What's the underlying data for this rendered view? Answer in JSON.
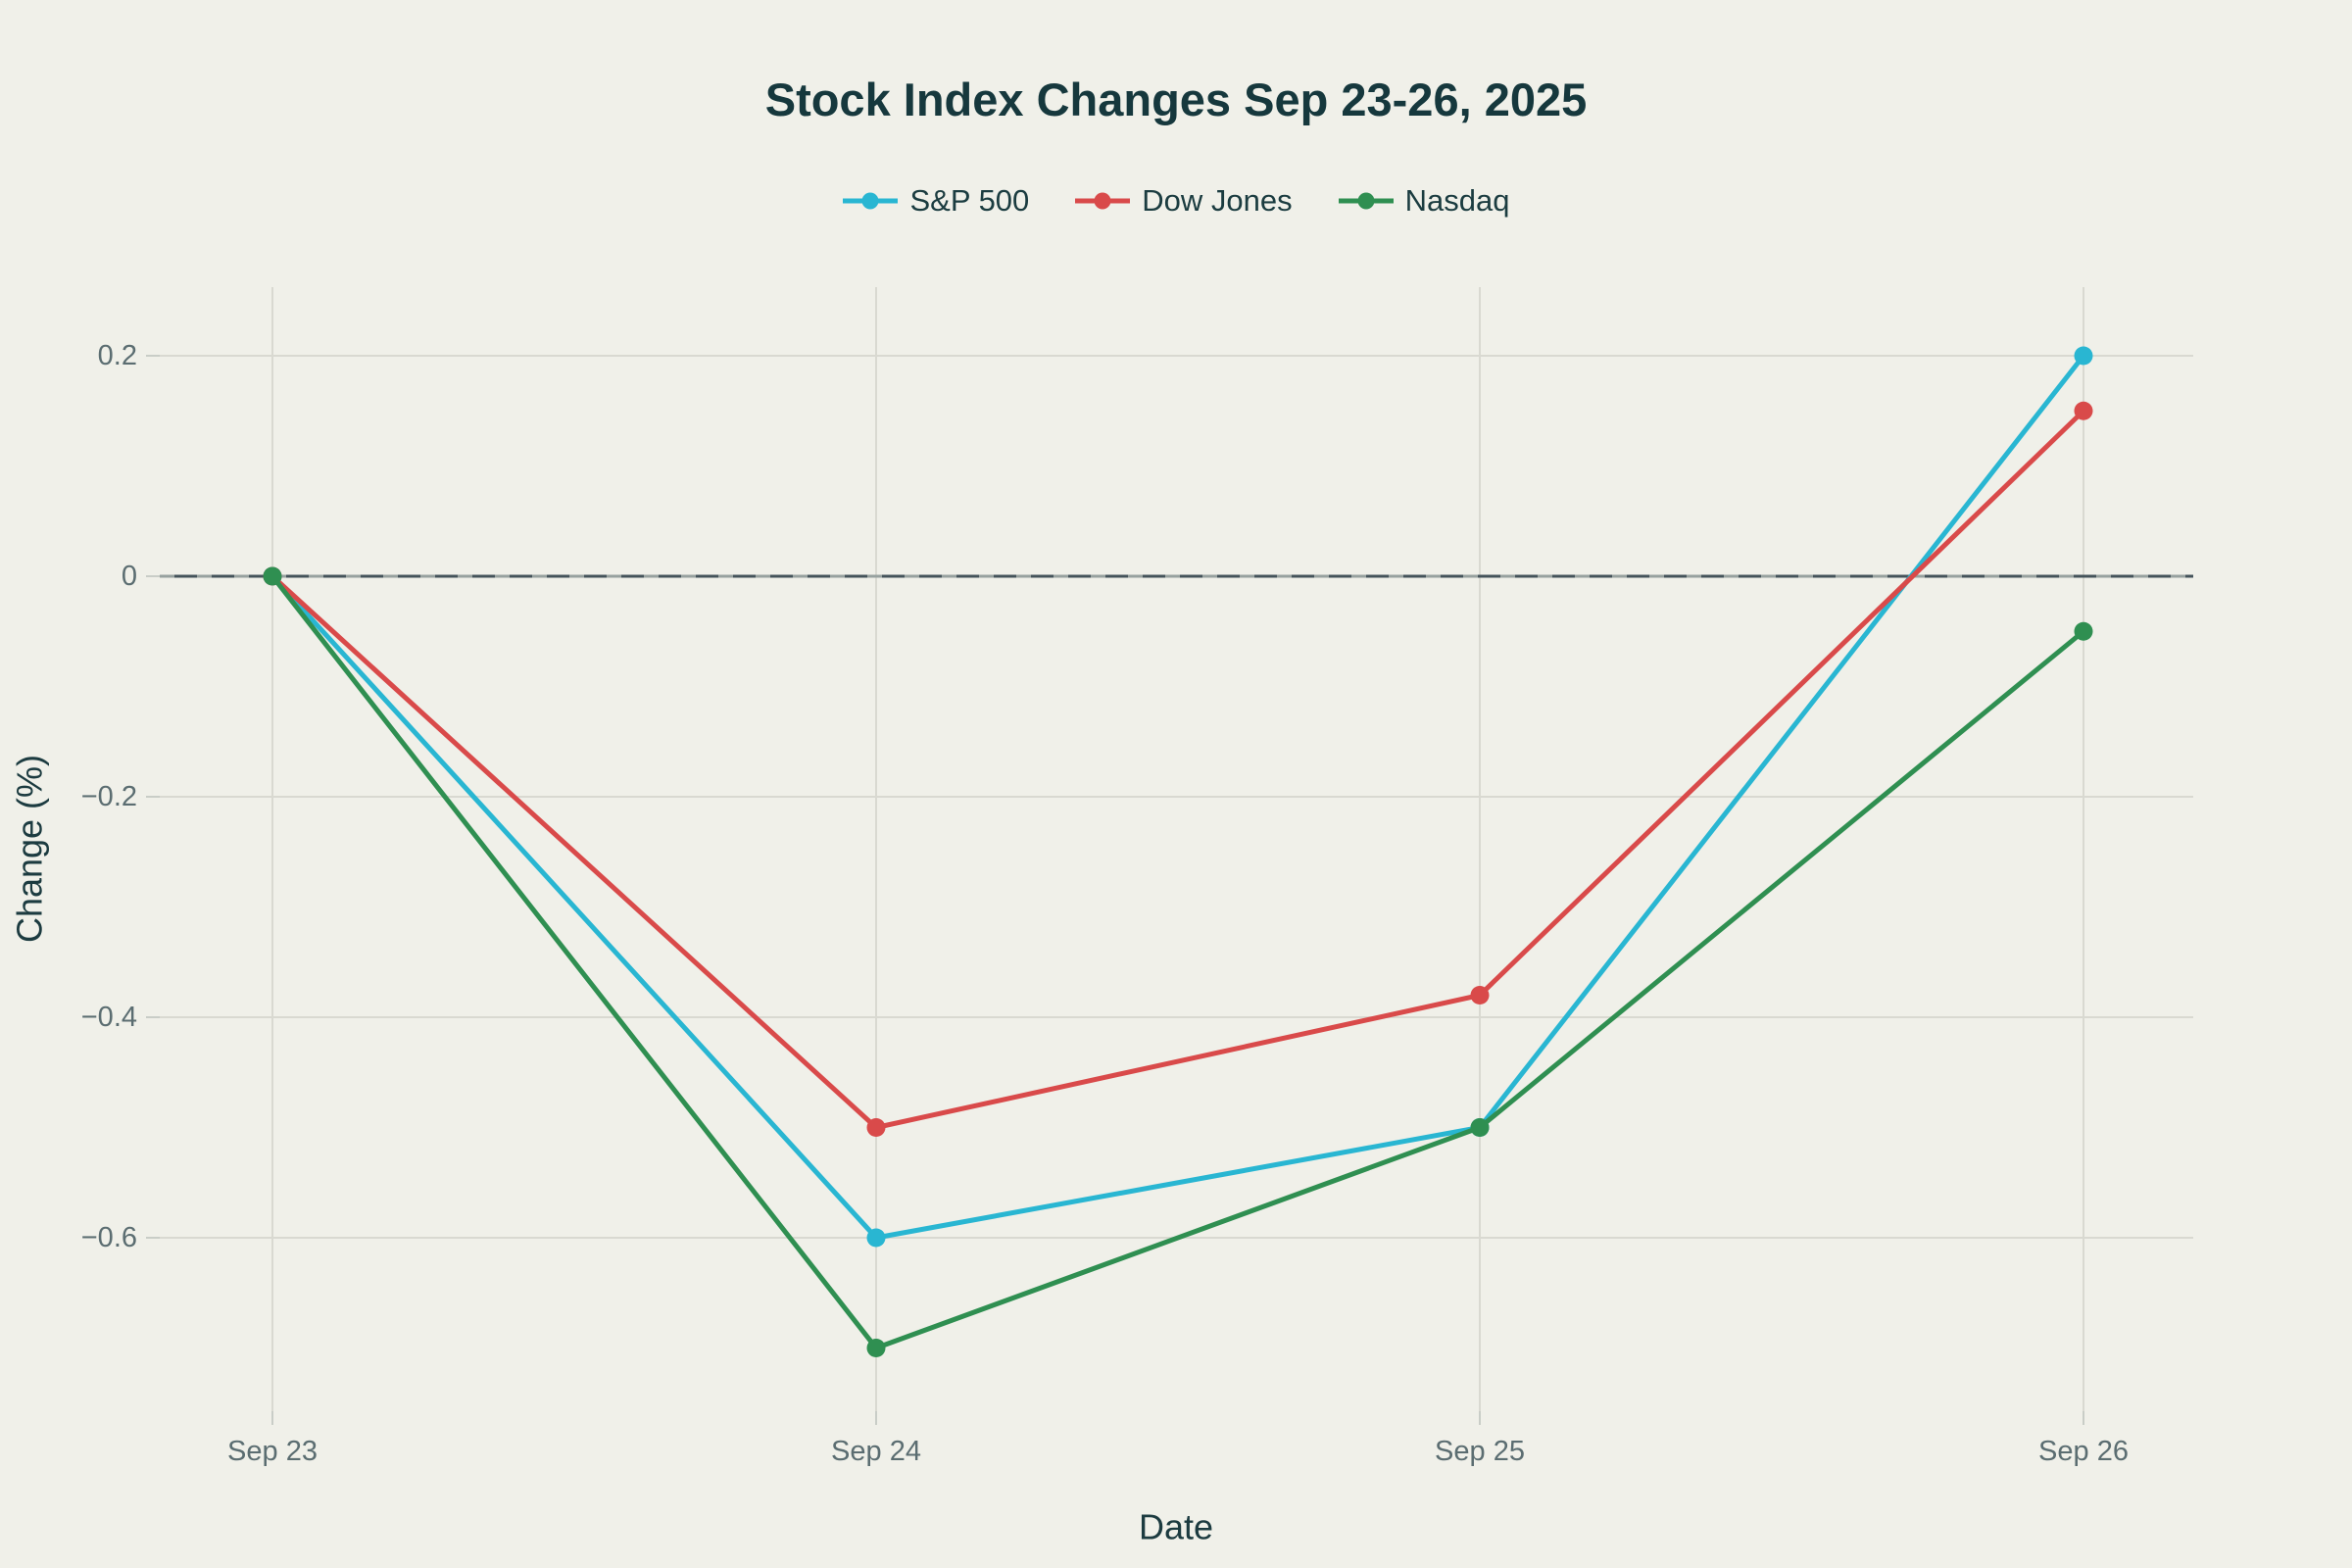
{
  "chart": {
    "title": "Stock Index Changes Sep 23-26, 2025"
  },
  "chart_data": {
    "type": "line",
    "title": "Stock Index Changes Sep 23-26, 2025",
    "xlabel": "Date",
    "ylabel": "Change (%)",
    "categories": [
      "Sep 23",
      "Sep 24",
      "Sep 25",
      "Sep 26"
    ],
    "series": [
      {
        "name": "S&P 500",
        "color": "#29b6d2",
        "values": [
          0,
          -0.6,
          -0.5,
          0.2
        ]
      },
      {
        "name": "Dow Jones",
        "color": "#d94a4a",
        "values": [
          0,
          -0.5,
          -0.38,
          0.15
        ]
      },
      {
        "name": "Nasdaq",
        "color": "#2f8f51",
        "values": [
          0,
          -0.7,
          -0.5,
          -0.05
        ]
      }
    ],
    "yticks": [
      0.2,
      0,
      -0.2,
      -0.4,
      -0.6
    ],
    "ytick_labels": [
      "0.2",
      "0",
      "−0.2",
      "−0.4",
      "−0.6"
    ],
    "ylim": [
      -0.757,
      0.262
    ],
    "grid": true,
    "zeroline": true,
    "legend_position": "top-center"
  },
  "colors": {
    "background": "#f0f0e9",
    "title_text": "#16383d",
    "axis_title_text": "#1c3b40",
    "tick_text": "#5b6d71",
    "grid": "#d9d9d1",
    "tick_mark": "#c9cdc7",
    "zero_line": "#44535a",
    "zero_line_dash": "#97a19f"
  }
}
